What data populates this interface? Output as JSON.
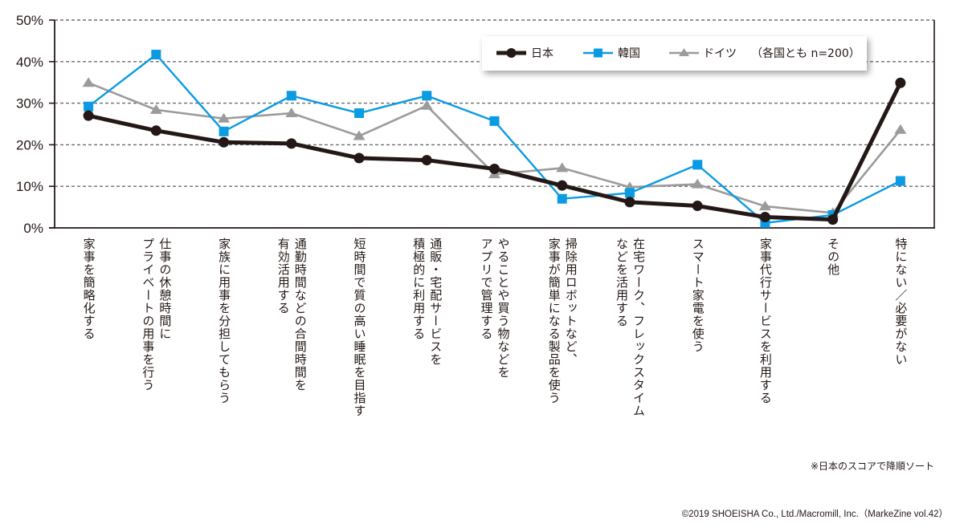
{
  "chart_data": {
    "type": "line",
    "title": "",
    "xlabel": "",
    "ylabel": "",
    "ylim": [
      0,
      50
    ],
    "yticks": [
      0,
      10,
      20,
      30,
      40,
      50
    ],
    "ytick_labels": [
      "0%",
      "10%",
      "20%",
      "30%",
      "40%",
      "50%"
    ],
    "grid": "horizontal dashed",
    "legend_position": "top-right",
    "legend_note": "（各国とも n=200）",
    "categories": [
      [
        "家事を簡略化する"
      ],
      [
        "仕事の休憩時間に",
        "プライベートの用事を行う"
      ],
      [
        "家族に用事を分担してもらう"
      ],
      [
        "通勤時間などの合間時間を",
        "有効活用する"
      ],
      [
        "短時間で質の高い睡眠を目指す"
      ],
      [
        "通販・宅配サービスを",
        "積極的に利用する"
      ],
      [
        "やることや買う物などを",
        "アプリで管理する"
      ],
      [
        "掃除用ロボットなど、",
        "家事が簡単になる製品を使う"
      ],
      [
        "在宅ワーク、フレックスタイム",
        "などを活用する"
      ],
      [
        "スマート家電を使う"
      ],
      [
        "家事代行サービスを利用する"
      ],
      [
        "その他"
      ],
      [
        "特にない／必要がない"
      ]
    ],
    "series": [
      {
        "name": "日本",
        "color": "#231815",
        "marker": "circle",
        "values": [
          27.0,
          23.4,
          20.6,
          20.3,
          16.8,
          16.3,
          14.2,
          10.2,
          6.2,
          5.3,
          2.6,
          2.0,
          34.9
        ]
      },
      {
        "name": "韓国",
        "color": "#0a9be3",
        "marker": "square",
        "values": [
          29.2,
          41.7,
          23.2,
          31.8,
          27.6,
          31.8,
          25.7,
          7.0,
          8.4,
          15.2,
          1.2,
          3.1,
          11.3
        ]
      },
      {
        "name": "ドイツ",
        "color": "#9b9b9b",
        "marker": "triangle",
        "values": [
          34.9,
          28.4,
          26.3,
          27.6,
          22.1,
          29.4,
          12.9,
          14.4,
          9.8,
          10.5,
          5.2,
          3.6,
          23.6
        ]
      }
    ]
  },
  "footer": {
    "note": "※日本のスコアで降順ソート",
    "copyright": "©2019 SHOEISHA Co., Ltd./Macromill, Inc.（MarkeZine vol.42）"
  }
}
